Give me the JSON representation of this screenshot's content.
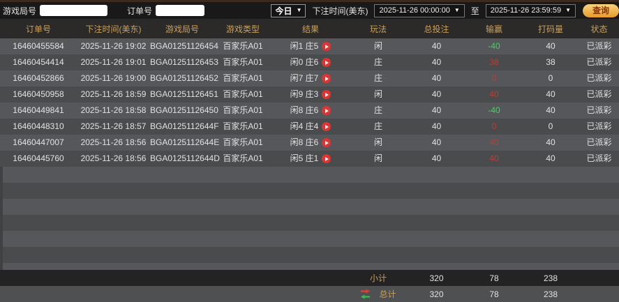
{
  "topbar": {
    "game_round_label": "游戏局号",
    "game_round_value": "",
    "order_no_label": "订单号",
    "order_no_value": "",
    "range_select_value": "今日",
    "bet_time_label": "下注时间(美东)",
    "start_time": "2025-11-26 00:00:00",
    "to_label": "至",
    "end_time": "2025-11-26 23:59:59",
    "search_button_label": "查询"
  },
  "table": {
    "headers": [
      "订单号",
      "下注时间(美东)",
      "游戏局号",
      "游戏类型",
      "结果",
      "玩法",
      "总投注",
      "输赢",
      "打码量",
      "状态"
    ],
    "rows": [
      {
        "order_no": "16460455584",
        "bet_time": "2025-11-26 19:02",
        "game_round": "BGA01251126454",
        "game_type": "百家乐A01",
        "result": "闲1 庄5",
        "play": "闲",
        "total_bet": "40",
        "win_loss": "-40",
        "win_loss_color": "green",
        "turnover": "40",
        "status": "已派彩"
      },
      {
        "order_no": "16460454414",
        "bet_time": "2025-11-26 19:01",
        "game_round": "BGA01251126453",
        "game_type": "百家乐A01",
        "result": "闲0 庄6",
        "play": "庄",
        "total_bet": "40",
        "win_loss": "38",
        "win_loss_color": "red",
        "turnover": "38",
        "status": "已派彩"
      },
      {
        "order_no": "16460452866",
        "bet_time": "2025-11-26 19:00",
        "game_round": "BGA01251126452",
        "game_type": "百家乐A01",
        "result": "闲7 庄7",
        "play": "庄",
        "total_bet": "40",
        "win_loss": "0",
        "win_loss_color": "red",
        "turnover": "0",
        "status": "已派彩"
      },
      {
        "order_no": "16460450958",
        "bet_time": "2025-11-26 18:59",
        "game_round": "BGA01251126451",
        "game_type": "百家乐A01",
        "result": "闲9 庄3",
        "play": "闲",
        "total_bet": "40",
        "win_loss": "40",
        "win_loss_color": "red",
        "turnover": "40",
        "status": "已派彩"
      },
      {
        "order_no": "16460449841",
        "bet_time": "2025-11-26 18:58",
        "game_round": "BGA01251126450",
        "game_type": "百家乐A01",
        "result": "闲8 庄6",
        "play": "庄",
        "total_bet": "40",
        "win_loss": "-40",
        "win_loss_color": "green",
        "turnover": "40",
        "status": "已派彩"
      },
      {
        "order_no": "16460448310",
        "bet_time": "2025-11-26 18:57",
        "game_round": "BGA0125112644F",
        "game_type": "百家乐A01",
        "result": "闲4 庄4",
        "play": "庄",
        "total_bet": "40",
        "win_loss": "0",
        "win_loss_color": "red",
        "turnover": "0",
        "status": "已派彩"
      },
      {
        "order_no": "16460447007",
        "bet_time": "2025-11-26 18:56",
        "game_round": "BGA0125112644E",
        "game_type": "百家乐A01",
        "result": "闲8 庄6",
        "play": "闲",
        "total_bet": "40",
        "win_loss": "40",
        "win_loss_color": "red",
        "turnover": "40",
        "status": "已派彩"
      },
      {
        "order_no": "16460445760",
        "bet_time": "2025-11-26 18:56",
        "game_round": "BGA0125112644D",
        "game_type": "百家乐A01",
        "result": "闲5 庄1",
        "play": "闲",
        "total_bet": "40",
        "win_loss": "40",
        "win_loss_color": "red",
        "turnover": "40",
        "status": "已派彩"
      }
    ],
    "subtotal": {
      "label": "小计",
      "total_bet": "320",
      "win_loss": "78",
      "turnover": "238"
    },
    "total": {
      "label": "总计",
      "total_bet": "320",
      "win_loss": "78",
      "turnover": "238"
    }
  },
  "colors": {
    "accent_gold": "#c9a05e",
    "win_red": "#c23b35",
    "loss_green": "#3fd858",
    "search_button_gold": "#e89a2d",
    "row_light": "#56575a",
    "row_dark": "#4a4b4d",
    "topbar_bg": "#191919",
    "header_bg": "#2b2a28"
  }
}
